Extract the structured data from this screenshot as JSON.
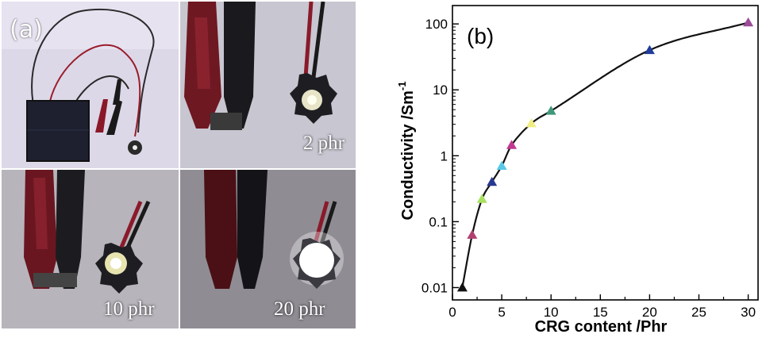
{
  "panel_a": {
    "letter": "(a)",
    "photos": [
      {
        "label": ""
      },
      {
        "label": "2 phr"
      },
      {
        "label": "10 phr"
      },
      {
        "label": "20 phr"
      }
    ]
  },
  "chart_data": {
    "type": "scatter",
    "panel_letter": "(b)",
    "xlabel": "CRG content /Phr",
    "ylabel": "Conductivity /Sm",
    "ylabel_superscript": "-1",
    "xlim": [
      0,
      31
    ],
    "ylim": [
      0.0065,
      190
    ],
    "yscale": "log",
    "x_ticks": [
      0,
      5,
      10,
      15,
      20,
      25,
      30
    ],
    "x_tick_labels": [
      "0",
      "5",
      "10",
      "15",
      "20",
      "25",
      "30"
    ],
    "y_ticks": [
      0.01,
      0.1,
      1,
      10,
      100
    ],
    "y_tick_labels": [
      "0.01",
      "0.1",
      "1",
      "10",
      "100"
    ],
    "grid": false,
    "legend": "none",
    "points": [
      {
        "x": 1,
        "y": 0.01,
        "color": "#111111"
      },
      {
        "x": 2,
        "y": 0.063,
        "color": "#b04070"
      },
      {
        "x": 3,
        "y": 0.22,
        "color": "#a8e060"
      },
      {
        "x": 4,
        "y": 0.4,
        "color": "#283890"
      },
      {
        "x": 5,
        "y": 0.7,
        "color": "#58c8e8"
      },
      {
        "x": 6,
        "y": 1.45,
        "color": "#c03890"
      },
      {
        "x": 8,
        "y": 3.1,
        "color": "#f0ec80"
      },
      {
        "x": 10,
        "y": 4.8,
        "color": "#409878"
      },
      {
        "x": 20,
        "y": 40,
        "color": "#203c9c"
      },
      {
        "x": 30,
        "y": 105,
        "color": "#9c4c98"
      }
    ],
    "fit_curve": {
      "color": "#111111"
    }
  }
}
